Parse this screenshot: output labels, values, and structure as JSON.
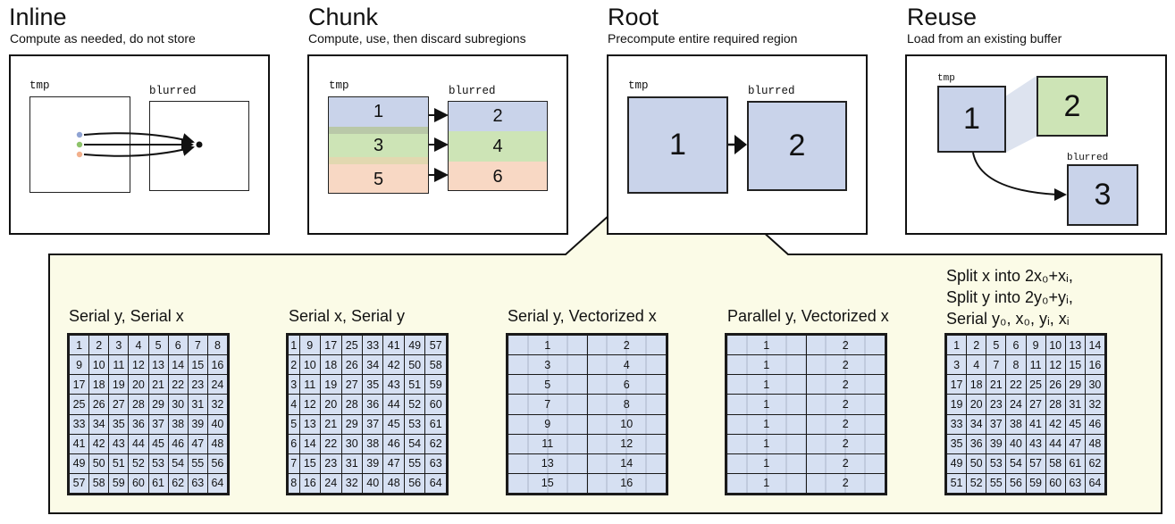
{
  "panels": {
    "inline": {
      "title": "Inline",
      "subtitle": "Compute as needed, do not store",
      "tmp_label": "tmp",
      "blurred_label": "blurred"
    },
    "chunk": {
      "title": "Chunk",
      "subtitle": "Compute, use, then discard subregions",
      "tmp_label": "tmp",
      "blurred_label": "blurred",
      "tmp_numbers": [
        "1",
        "3",
        "5"
      ],
      "blurred_numbers": [
        "2",
        "4",
        "6"
      ]
    },
    "root": {
      "title": "Root",
      "subtitle": "Precompute entire required region",
      "tmp_label": "tmp",
      "blurred_label": "blurred",
      "tmp_number": "1",
      "blurred_number": "2"
    },
    "reuse": {
      "title": "Reuse",
      "subtitle": "Load from an existing buffer",
      "tmp_label": "tmp",
      "blurred_label": "blurred",
      "tmp_number": "1",
      "buffer_number": "2",
      "blurred_number": "3"
    }
  },
  "colors": {
    "blue": "#c9d3ea",
    "green": "#cde4b6",
    "peach": "#f8d8c4",
    "callout": "#fbfbe7",
    "grid_bg": "#d6e0f2"
  },
  "schedules": [
    {
      "title": "Serial y, Serial x",
      "rows": [
        [
          "1",
          "2",
          "3",
          "4",
          "5",
          "6",
          "7",
          "8"
        ],
        [
          "9",
          "10",
          "11",
          "12",
          "13",
          "14",
          "15",
          "16"
        ],
        [
          "17",
          "18",
          "19",
          "20",
          "21",
          "22",
          "23",
          "24"
        ],
        [
          "25",
          "26",
          "27",
          "28",
          "29",
          "30",
          "31",
          "32"
        ],
        [
          "33",
          "34",
          "35",
          "36",
          "37",
          "38",
          "39",
          "40"
        ],
        [
          "41",
          "42",
          "43",
          "44",
          "45",
          "46",
          "47",
          "48"
        ],
        [
          "49",
          "50",
          "51",
          "52",
          "53",
          "54",
          "55",
          "56"
        ],
        [
          "57",
          "58",
          "59",
          "60",
          "61",
          "62",
          "63",
          "64"
        ]
      ]
    },
    {
      "title": "Serial x, Serial y",
      "rows": [
        [
          "1",
          "9",
          "17",
          "25",
          "33",
          "41",
          "49",
          "57"
        ],
        [
          "2",
          "10",
          "18",
          "26",
          "34",
          "42",
          "50",
          "58"
        ],
        [
          "3",
          "11",
          "19",
          "27",
          "35",
          "43",
          "51",
          "59"
        ],
        [
          "4",
          "12",
          "20",
          "28",
          "36",
          "44",
          "52",
          "60"
        ],
        [
          "5",
          "13",
          "21",
          "29",
          "37",
          "45",
          "53",
          "61"
        ],
        [
          "6",
          "14",
          "22",
          "30",
          "38",
          "46",
          "54",
          "62"
        ],
        [
          "7",
          "15",
          "23",
          "31",
          "39",
          "47",
          "55",
          "63"
        ],
        [
          "8",
          "16",
          "24",
          "32",
          "40",
          "48",
          "56",
          "64"
        ]
      ]
    },
    {
      "title": "Serial y, Vectorized x",
      "rows": [
        [
          "1",
          "2"
        ],
        [
          "3",
          "4"
        ],
        [
          "5",
          "6"
        ],
        [
          "7",
          "8"
        ],
        [
          "9",
          "10"
        ],
        [
          "11",
          "12"
        ],
        [
          "13",
          "14"
        ],
        [
          "15",
          "16"
        ]
      ]
    },
    {
      "title": "Parallel y, Vectorized x",
      "rows": [
        [
          "1",
          "2"
        ],
        [
          "1",
          "2"
        ],
        [
          "1",
          "2"
        ],
        [
          "1",
          "2"
        ],
        [
          "1",
          "2"
        ],
        [
          "1",
          "2"
        ],
        [
          "1",
          "2"
        ],
        [
          "1",
          "2"
        ]
      ]
    },
    {
      "title_lines": [
        "Split x into 2x₀+xᵢ,",
        "Split y into 2y₀+yᵢ,",
        "Serial y₀, x₀, yᵢ, xᵢ"
      ],
      "rows": [
        [
          "1",
          "2",
          "5",
          "6",
          "9",
          "10",
          "13",
          "14"
        ],
        [
          "3",
          "4",
          "7",
          "8",
          "11",
          "12",
          "15",
          "16"
        ],
        [
          "17",
          "18",
          "21",
          "22",
          "25",
          "26",
          "29",
          "30"
        ],
        [
          "19",
          "20",
          "23",
          "24",
          "27",
          "28",
          "31",
          "32"
        ],
        [
          "33",
          "34",
          "37",
          "38",
          "41",
          "42",
          "45",
          "46"
        ],
        [
          "35",
          "36",
          "39",
          "40",
          "43",
          "44",
          "47",
          "48"
        ],
        [
          "49",
          "50",
          "53",
          "54",
          "57",
          "58",
          "61",
          "62"
        ],
        [
          "51",
          "52",
          "55",
          "56",
          "59",
          "60",
          "63",
          "64"
        ]
      ]
    }
  ]
}
